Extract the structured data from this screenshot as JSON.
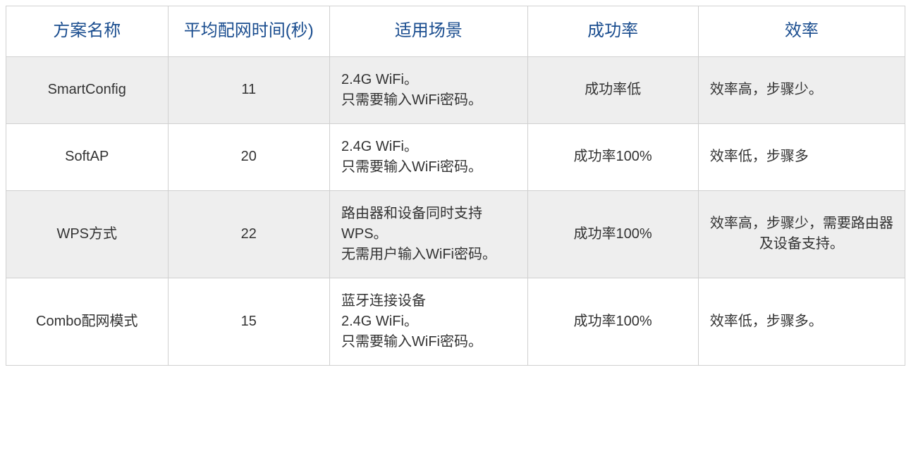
{
  "table": {
    "headers": {
      "name": "方案名称",
      "time": "平均配网时间(秒)",
      "scene": "适用场景",
      "success": "成功率",
      "efficiency": "效率"
    },
    "rows": [
      {
        "name": "SmartConfig",
        "time": "11",
        "scene": "2.4G WiFi。\n只需要输入WiFi密码。",
        "success": "成功率低",
        "efficiency": "效率高，步骤少。",
        "alt": true,
        "eff_center": false
      },
      {
        "name": "SoftAP",
        "time": "20",
        "scene": "2.4G WiFi。\n只需要输入WiFi密码。",
        "success": "成功率100%",
        "efficiency": "效率低，步骤多",
        "alt": false,
        "eff_center": false
      },
      {
        "name": "WPS方式",
        "time": "22",
        "scene": "路由器和设备同时支持WPS。\n无需用户输入WiFi密码。",
        "success": "成功率100%",
        "efficiency": "效率高，步骤少，需要路由器及设备支持。",
        "alt": true,
        "eff_center": true
      },
      {
        "name": "Combo配网模式",
        "time": "15",
        "scene": "蓝牙连接设备\n2.4G WiFi。\n只需要输入WiFi密码。",
        "success": "成功率100%",
        "efficiency": "效率低，步骤多。",
        "alt": false,
        "eff_center": false
      }
    ],
    "styling": {
      "header_text_color": "#1a4d8f",
      "link_text_color": "#1a4d8f",
      "body_text_color": "#333333",
      "alt_row_bg": "#eeeeee",
      "row_bg": "#ffffff",
      "border_color": "#d0d0d0",
      "header_fontsize_pt": 18,
      "body_fontsize_pt": 15,
      "col_widths_pct": [
        18,
        18,
        22,
        19,
        23
      ]
    }
  }
}
